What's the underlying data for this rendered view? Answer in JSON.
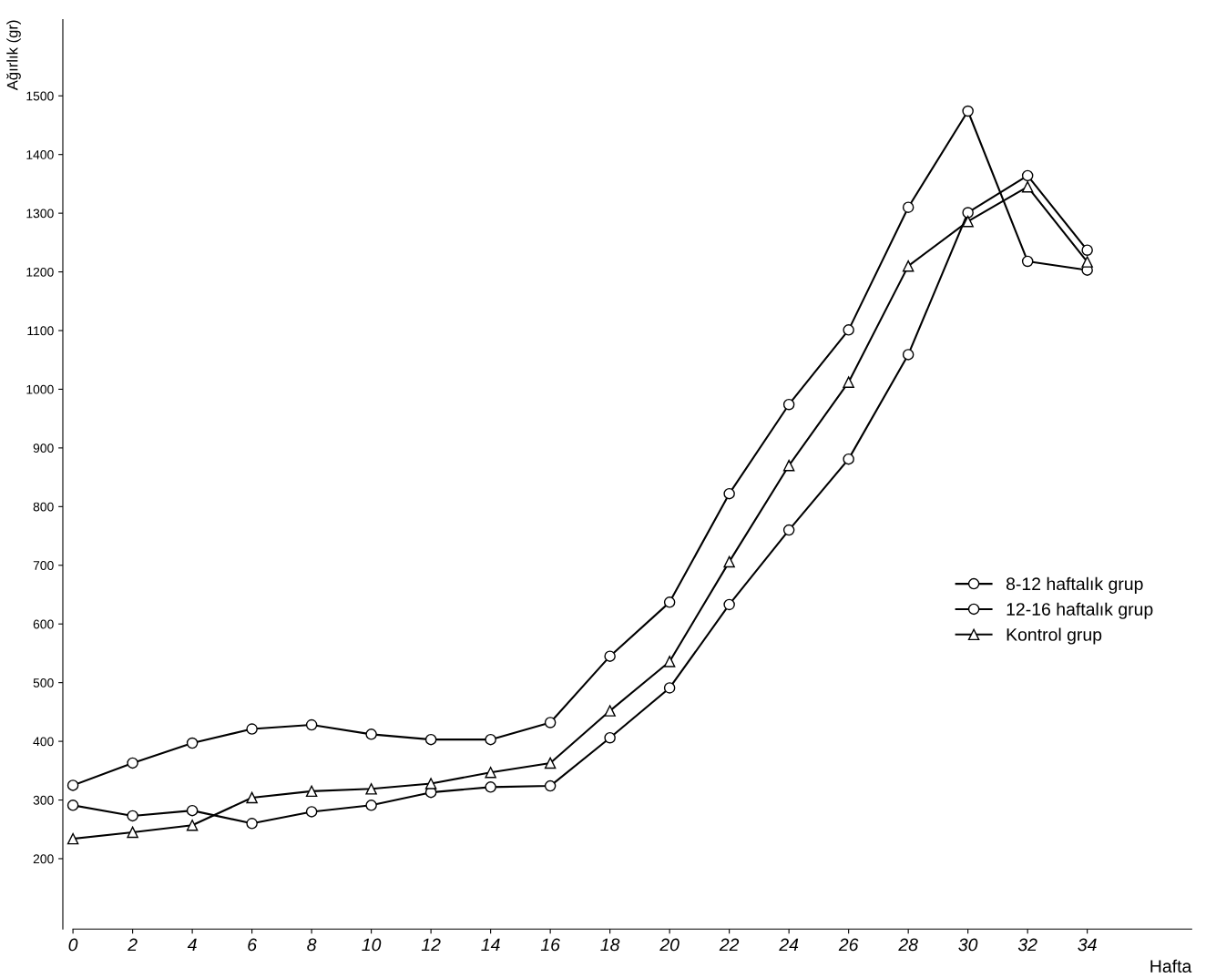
{
  "chart_data": {
    "type": "line",
    "xlabel": "Hafta",
    "ylabel": "Ağırlık (gr)",
    "x": [
      0,
      2,
      4,
      6,
      8,
      10,
      12,
      14,
      16,
      18,
      20,
      22,
      24,
      26,
      28,
      30,
      32,
      34
    ],
    "series": [
      {
        "name": "8-12 haftalık grup",
        "color": "#000000",
        "marker": "circle",
        "values": [
          325,
          363,
          397,
          421,
          428,
          412,
          403,
          403,
          432,
          545,
          637,
          822,
          974,
          1101,
          1310,
          1474,
          1218,
          1203
        ]
      },
      {
        "name": "12-16 haftalık grup",
        "color": "#000000",
        "marker": "circle",
        "values": [
          291,
          273,
          282,
          260,
          280,
          291,
          313,
          322,
          324,
          406,
          491,
          633,
          760,
          881,
          1059,
          1301,
          1364,
          1237
        ]
      },
      {
        "name": "Kontrol grup",
        "color": "#000000",
        "marker": "triangle",
        "values": [
          234,
          245,
          257,
          304,
          315,
          319,
          328,
          347,
          363,
          452,
          536,
          706,
          870,
          1012,
          1210,
          1286,
          1345,
          1217
        ]
      }
    ],
    "xlim": [
      0,
      37.5
    ],
    "ylim": [
      80,
      1630
    ],
    "xticks": [
      0,
      2,
      4,
      6,
      8,
      10,
      12,
      14,
      16,
      18,
      20,
      22,
      24,
      26,
      28,
      30,
      32,
      34
    ],
    "yticks": [
      200,
      300,
      400,
      500,
      600,
      700,
      800,
      900,
      1000,
      1100,
      1200,
      1300,
      1400,
      1500
    ],
    "grid": false,
    "legend": "right",
    "line_style": "solid"
  }
}
